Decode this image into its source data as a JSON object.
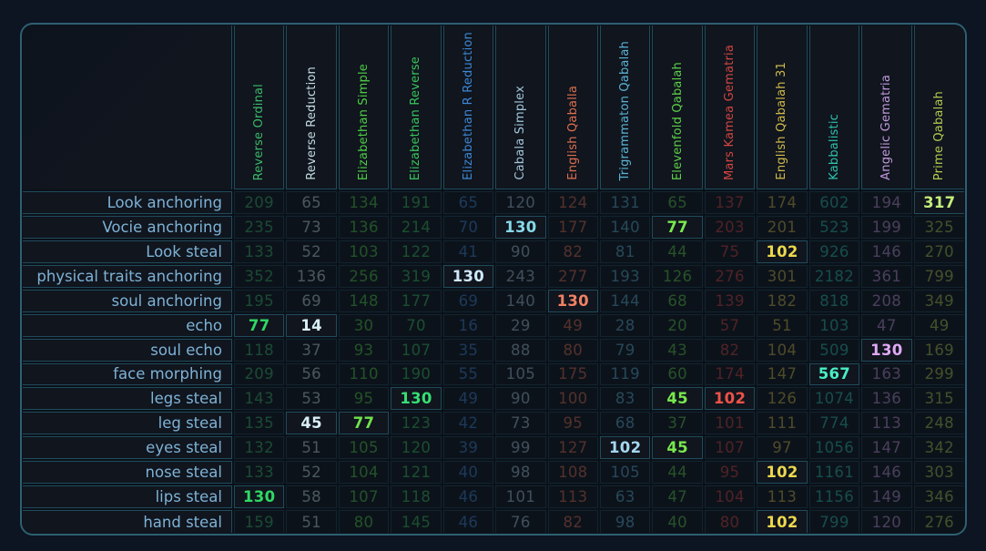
{
  "colors": {
    "page_background": "#0d1422",
    "table_border": "#2e6072",
    "grid_line": "#1f4b5b",
    "cell_background": "#10151e",
    "row_label": "#7eb2d6"
  },
  "table": {
    "columns": [
      {
        "label": "Reverse Ordinal",
        "color": "#3cb968",
        "bright": "#2fd964"
      },
      {
        "label": "Reverse Reduction",
        "color": "#c4dde2",
        "bright": "#d9f0f4"
      },
      {
        "label": "Elizabethan Simple",
        "color": "#4ecf45",
        "bright": "#6fe34d"
      },
      {
        "label": "Elizabethan Reverse",
        "color": "#38c55c",
        "bright": "#36df74"
      },
      {
        "label": "Elizabethan R Reduction",
        "color": "#3d87d4",
        "bright": "#cfe9fb"
      },
      {
        "label": "Cabala Simplex",
        "color": "#a3c6d8",
        "bright": "#86d9e8"
      },
      {
        "label": "English Qaballa",
        "color": "#dc6f4e",
        "bright": "#ef8164"
      },
      {
        "label": "Trigrammaton Qabalah",
        "color": "#5ab2d4",
        "bright": "#a5d7f0"
      },
      {
        "label": "Elevenfold Qabalah",
        "color": "#5ccf48",
        "bright": "#79e84e"
      },
      {
        "label": "Mars Kamea Gematria",
        "color": "#d24541",
        "bright": "#ee5247"
      },
      {
        "label": "English Qabalah 31",
        "color": "#cfba4a",
        "bright": "#ecd84d"
      },
      {
        "label": "Kabbalistic",
        "color": "#2dc2ac",
        "bright": "#49eec6"
      },
      {
        "label": "Angelic Gematria",
        "color": "#c199dc",
        "bright": "#dfa9f4"
      },
      {
        "label": "Prime Qabalah",
        "color": "#b3c94f",
        "bright": "#c5ee7d"
      }
    ],
    "rows": [
      {
        "label": "Look anchoring",
        "values": [
          209,
          65,
          134,
          191,
          65,
          120,
          124,
          131,
          65,
          137,
          174,
          602,
          194,
          317
        ],
        "highlight": [
          13
        ]
      },
      {
        "label": "Vocie anchoring",
        "values": [
          235,
          73,
          136,
          214,
          70,
          130,
          177,
          140,
          77,
          203,
          201,
          523,
          199,
          325
        ],
        "highlight": [
          5,
          8
        ]
      },
      {
        "label": "Look steal",
        "values": [
          133,
          52,
          103,
          122,
          41,
          90,
          82,
          81,
          44,
          75,
          102,
          926,
          146,
          270
        ],
        "highlight": [
          10
        ]
      },
      {
        "label": "physical traits anchoring",
        "values": [
          352,
          136,
          256,
          319,
          130,
          243,
          277,
          193,
          126,
          276,
          301,
          2182,
          361,
          799
        ],
        "highlight": [
          4
        ]
      },
      {
        "label": "soul anchoring",
        "values": [
          195,
          69,
          148,
          177,
          69,
          140,
          130,
          144,
          68,
          139,
          182,
          818,
          208,
          349
        ],
        "highlight": [
          6
        ]
      },
      {
        "label": "echo",
        "values": [
          77,
          14,
          30,
          70,
          16,
          29,
          49,
          28,
          20,
          57,
          51,
          103,
          47,
          49
        ],
        "highlight": [
          0,
          1
        ]
      },
      {
        "label": "soul echo",
        "values": [
          118,
          37,
          93,
          107,
          35,
          88,
          80,
          79,
          43,
          82,
          104,
          509,
          130,
          169
        ],
        "highlight": [
          12
        ]
      },
      {
        "label": "face morphing",
        "values": [
          209,
          56,
          110,
          190,
          55,
          105,
          175,
          119,
          60,
          174,
          147,
          567,
          163,
          299
        ],
        "highlight": [
          11
        ]
      },
      {
        "label": "legs steal",
        "values": [
          143,
          53,
          95,
          130,
          49,
          90,
          100,
          83,
          45,
          102,
          126,
          1074,
          136,
          315
        ],
        "highlight": [
          3,
          8,
          9
        ]
      },
      {
        "label": "leg steal",
        "values": [
          135,
          45,
          77,
          123,
          42,
          73,
          95,
          68,
          37,
          101,
          111,
          774,
          113,
          248
        ],
        "highlight": [
          1,
          2
        ]
      },
      {
        "label": "eyes steal",
        "values": [
          132,
          51,
          105,
          120,
          39,
          99,
          127,
          102,
          45,
          107,
          97,
          1056,
          147,
          342
        ],
        "highlight": [
          7,
          8
        ]
      },
      {
        "label": "nose steal",
        "values": [
          133,
          52,
          104,
          121,
          40,
          98,
          108,
          105,
          44,
          95,
          102,
          1161,
          146,
          303
        ],
        "highlight": [
          10
        ]
      },
      {
        "label": "lips steal",
        "values": [
          130,
          58,
          107,
          118,
          46,
          101,
          113,
          63,
          47,
          104,
          113,
          1156,
          149,
          346
        ],
        "highlight": [
          0
        ]
      },
      {
        "label": "hand steal",
        "values": [
          159,
          51,
          80,
          145,
          46,
          76,
          82,
          98,
          40,
          80,
          102,
          799,
          120,
          276
        ],
        "highlight": [
          10
        ]
      }
    ]
  }
}
